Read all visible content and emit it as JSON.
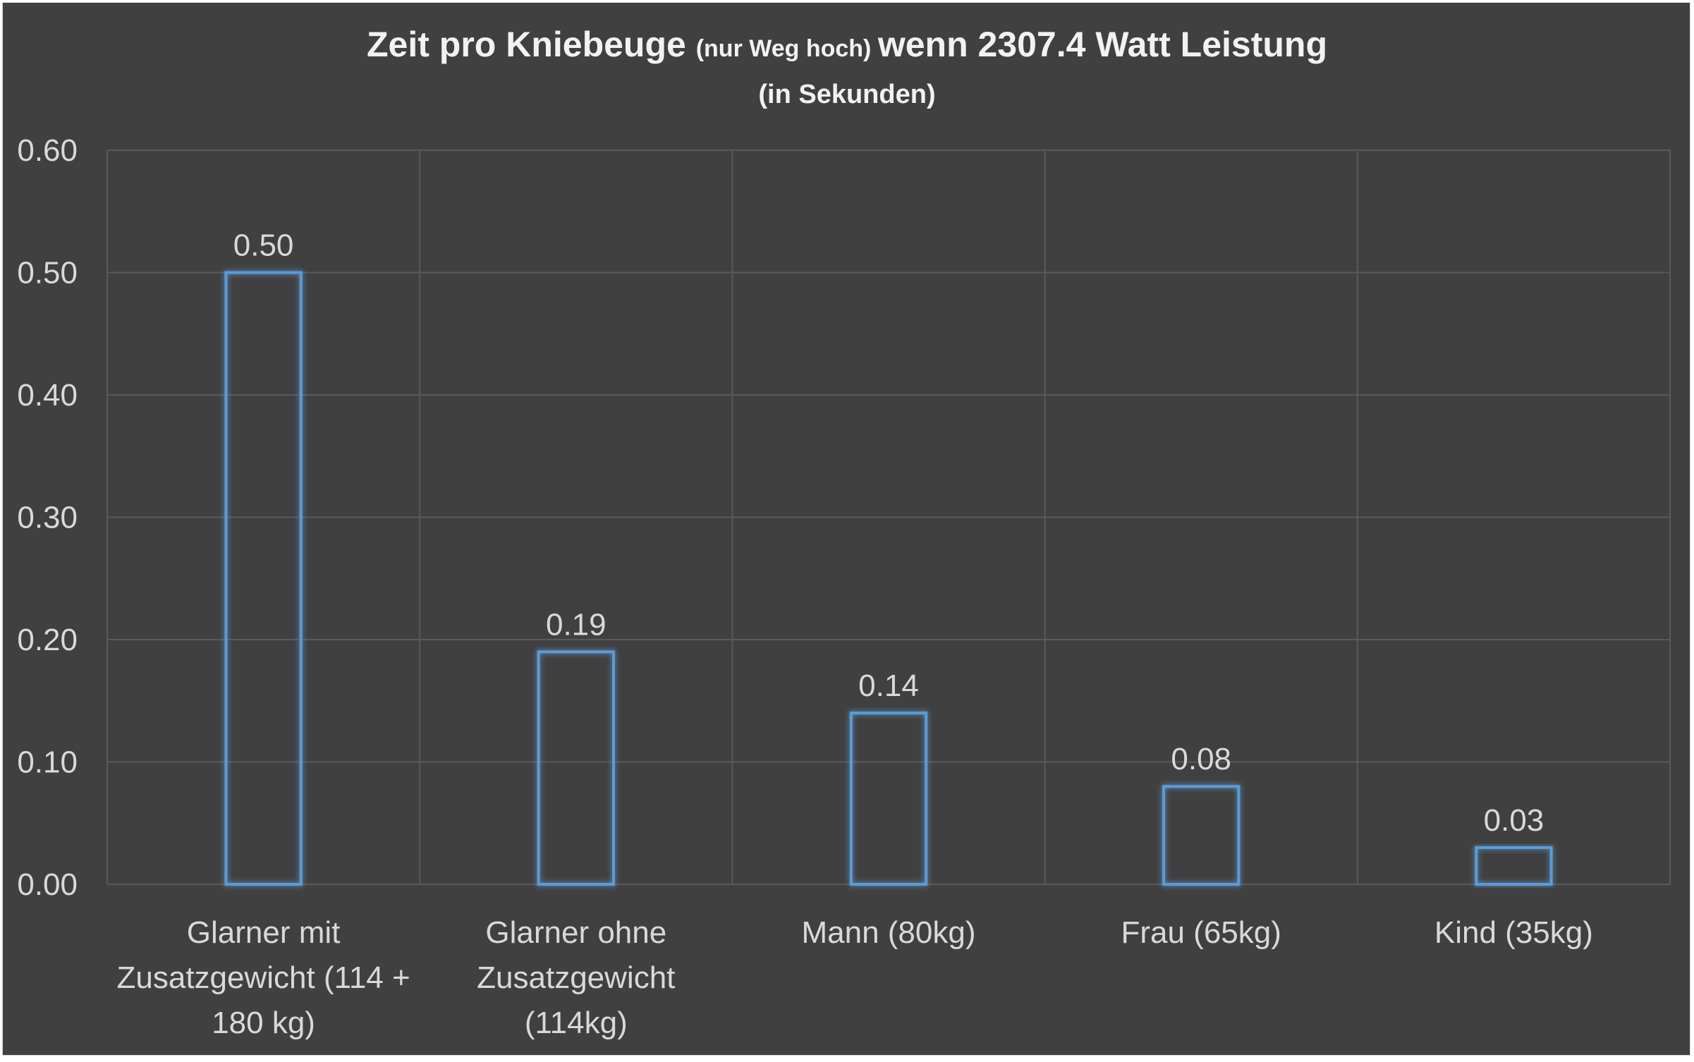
{
  "chart_data": {
    "type": "bar",
    "title_parts": [
      {
        "text": "Zeit pro Kniebeuge ",
        "style": "main"
      },
      {
        "text": "(nur Weg hoch) ",
        "style": "small"
      },
      {
        "text": "wenn 2307.4 Watt Leistung",
        "style": "main"
      }
    ],
    "subtitle": "(in Sekunden)",
    "categories": [
      [
        "Glarner mit",
        "Zusatzgewicht (114 +",
        "180 kg)"
      ],
      [
        "Glarner ohne",
        "Zusatzgewicht",
        "(114kg)"
      ],
      [
        "Mann (80kg)"
      ],
      [
        "Frau (65kg)"
      ],
      [
        "Kind (35kg)"
      ]
    ],
    "values": [
      0.5,
      0.19,
      0.14,
      0.08,
      0.03
    ],
    "data_labels": [
      "0.50",
      "0.19",
      "0.14",
      "0.08",
      "0.03"
    ],
    "ylim": [
      0,
      0.6
    ],
    "yticks": [
      0.0,
      0.1,
      0.2,
      0.3,
      0.4,
      0.5,
      0.6
    ],
    "ytick_labels": [
      "0.00",
      "0.10",
      "0.20",
      "0.30",
      "0.40",
      "0.50",
      "0.60"
    ],
    "grid": true,
    "legend": "none",
    "colors": {
      "background": "#404040",
      "bar_outline": "#5b9bd5",
      "grid": "#5a5a5a",
      "text": "#d9d9d9"
    }
  }
}
